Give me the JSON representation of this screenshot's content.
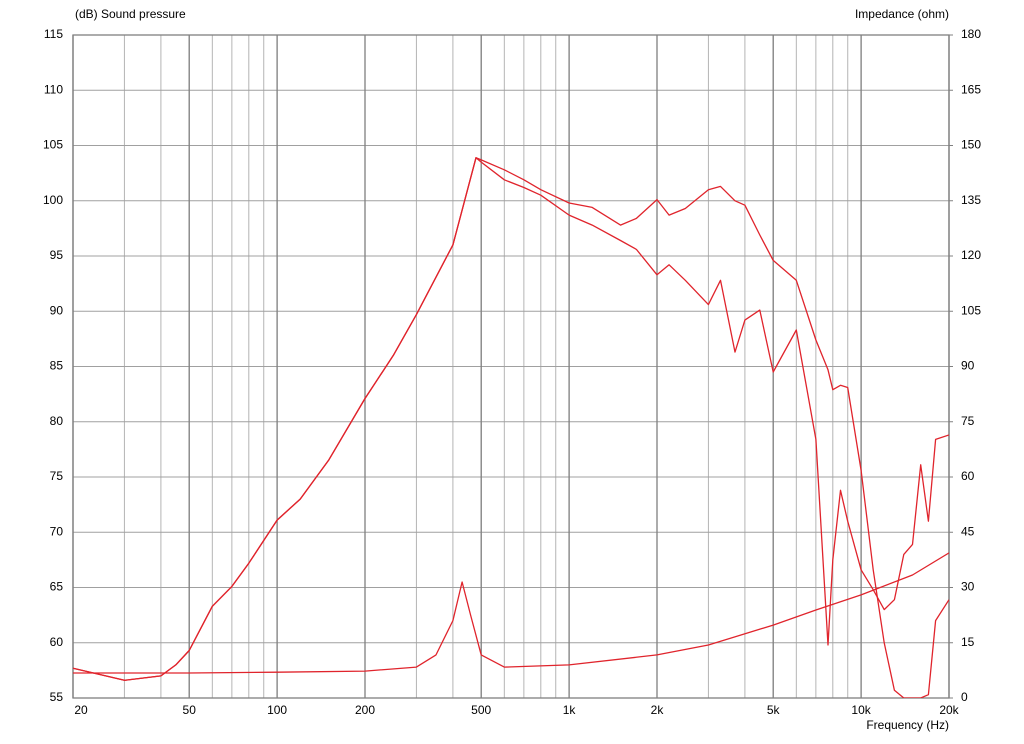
{
  "chart_data": {
    "type": "line",
    "ylabel": "(dB)  Sound pressure",
    "y2label": "Impedance  (ohm)",
    "xlabel": "Frequency  (Hz)",
    "xscale": "log",
    "grid": true,
    "xlim": [
      20,
      20000
    ],
    "ylim": [
      55,
      115
    ],
    "y2lim": [
      0,
      180
    ],
    "xticks": [
      20,
      50,
      100,
      200,
      500,
      {
        "value": 1000,
        "label": "1k"
      },
      {
        "value": 2000,
        "label": "2k"
      },
      {
        "value": 5000,
        "label": "5k"
      },
      {
        "value": 10000,
        "label": "10k"
      },
      {
        "value": 20000,
        "label": "20k"
      }
    ],
    "yticks": [
      55,
      60,
      65,
      70,
      75,
      80,
      85,
      90,
      95,
      100,
      105,
      110,
      115
    ],
    "y2ticks": [
      0,
      15,
      30,
      45,
      60,
      75,
      90,
      105,
      120,
      135,
      150,
      165,
      180
    ],
    "series": [
      {
        "color": "#e0242c",
        "x": [
          20,
          30,
          40,
          45,
          50,
          60,
          70,
          80,
          100,
          120,
          150,
          200,
          250,
          300,
          400,
          480,
          500,
          600,
          700,
          800,
          1000,
          1200,
          1500,
          1700,
          2000,
          2200,
          2500,
          3000,
          3300,
          3700,
          4000,
          4500,
          5000,
          6000,
          7000,
          7700,
          8000,
          8500,
          9000,
          10000,
          11000,
          12000,
          13000,
          14000,
          15000,
          16000,
          17000,
          18000,
          20000
        ],
        "values": [
          57.7,
          56.6,
          57.0,
          58.0,
          59.3,
          63.3,
          65.1,
          67.2,
          71.1,
          73.0,
          76.5,
          82.1,
          86.0,
          89.7,
          96.0,
          103.9,
          103.7,
          102.8,
          101.9,
          101.0,
          99.8,
          99.4,
          97.8,
          98.4,
          100.1,
          98.7,
          99.3,
          101.0,
          101.3,
          100.0,
          99.6,
          96.9,
          94.6,
          92.8,
          87.4,
          84.7,
          82.9,
          83.3,
          83.1,
          75.6,
          66.6,
          60.0,
          55.7,
          55,
          55,
          55,
          55.3,
          62.0,
          63.9
        ]
      },
      {
        "color": "#e0242c",
        "x": [
          20,
          30,
          40,
          45,
          50,
          60,
          70,
          80,
          100,
          120,
          150,
          200,
          250,
          300,
          400,
          480,
          500,
          600,
          700,
          800,
          1000,
          1200,
          1500,
          1700,
          2000,
          2200,
          2500,
          3000,
          3300,
          3700,
          4000,
          4500,
          5000,
          6000,
          7000,
          7700,
          8000,
          8500,
          9000,
          10000,
          11000,
          12000,
          13000,
          14000,
          15000,
          16000,
          17000,
          18000,
          20000
        ],
        "values": [
          57.7,
          56.6,
          57.0,
          58.0,
          59.3,
          63.3,
          65.1,
          67.2,
          71.1,
          73.0,
          76.5,
          82.1,
          86.0,
          89.7,
          96.0,
          103.9,
          103.5,
          101.9,
          101.2,
          100.5,
          98.7,
          97.8,
          96.4,
          95.6,
          93.3,
          94.2,
          92.8,
          90.6,
          92.8,
          86.3,
          89.2,
          90.1,
          84.5,
          88.3,
          78.4,
          59.8,
          67.5,
          73.8,
          71.0,
          66.6,
          64.8,
          63.0,
          63.9,
          68.0,
          68.9,
          76.1,
          71.0,
          78.4,
          78.8
        ]
      },
      {
        "color": "#e0242c",
        "axis": "y2",
        "x": [
          20,
          50,
          100,
          200,
          300,
          350,
          400,
          430,
          460,
          500,
          600,
          1000,
          2000,
          3000,
          5000,
          7000,
          10000,
          15000,
          20000
        ],
        "values": [
          6.8,
          6.8,
          7.0,
          7.3,
          8.4,
          11.7,
          21.0,
          31.5,
          22.5,
          11.7,
          8.4,
          9.0,
          11.7,
          14.4,
          19.8,
          23.9,
          28.0,
          33.4,
          39.4
        ]
      }
    ]
  }
}
